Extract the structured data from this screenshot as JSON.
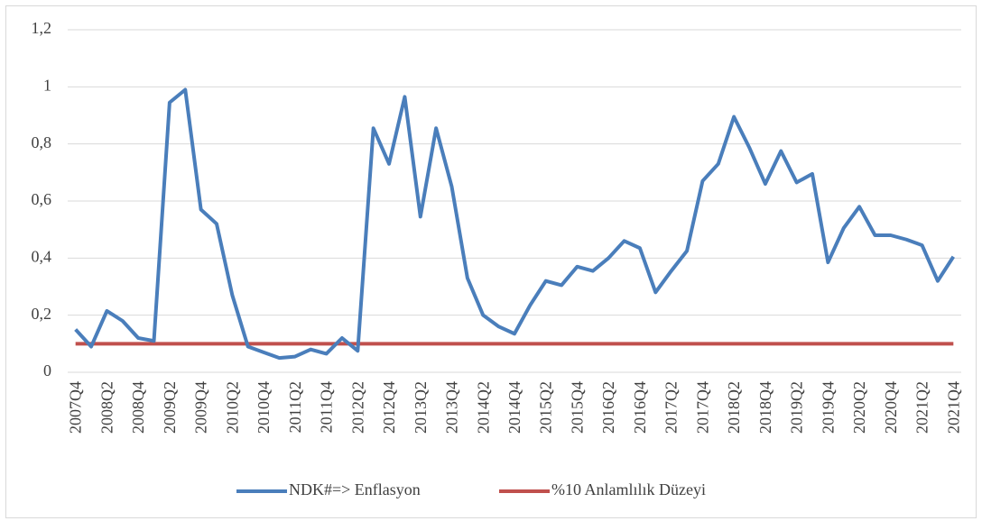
{
  "chart_data": {
    "type": "line",
    "categories": [
      "2007Q4",
      null,
      "2008Q2",
      null,
      "2008Q4",
      null,
      "2009Q2",
      null,
      "2009Q4",
      null,
      "2010Q2",
      null,
      "2010Q4",
      null,
      "2011Q2",
      null,
      "2011Q4",
      null,
      "2012Q2",
      null,
      "2012Q4",
      null,
      "2013Q2",
      null,
      "2013Q4",
      null,
      "2014Q2",
      null,
      "2014Q4",
      null,
      "2015Q2",
      null,
      "2015Q4",
      null,
      "2016Q2",
      null,
      "2016Q4",
      null,
      "2017Q2",
      null,
      "2017Q4",
      null,
      "2018Q2",
      null,
      "2018Q4",
      null,
      "2019Q2",
      null,
      "2019Q4",
      null,
      "2020Q2",
      null,
      "2020Q4",
      null,
      "2021Q2",
      null,
      "2021Q4"
    ],
    "series": [
      {
        "name": "NDK#=> Enflasyon",
        "color": "#4a7ebb",
        "values": [
          0.15,
          0.09,
          0.215,
          0.18,
          0.12,
          0.11,
          0.945,
          0.99,
          0.57,
          0.52,
          0.27,
          0.09,
          0.07,
          0.05,
          0.055,
          0.08,
          0.065,
          0.12,
          0.075,
          0.855,
          0.73,
          0.965,
          0.545,
          0.855,
          0.65,
          0.33,
          0.2,
          0.16,
          0.135,
          0.235,
          0.32,
          0.305,
          0.37,
          0.355,
          0.4,
          0.46,
          0.435,
          0.28,
          0.355,
          0.425,
          0.67,
          0.73,
          0.895,
          0.785,
          0.66,
          0.775,
          0.665,
          0.695,
          0.385,
          0.505,
          0.58,
          0.48,
          0.48,
          0.465,
          0.445,
          0.32,
          0.405
        ]
      },
      {
        "name": "%10 Anlamlılık Düzeyi",
        "color": "#c0504d",
        "values": [
          0.1,
          0.1,
          0.1,
          0.1,
          0.1,
          0.1,
          0.1,
          0.1,
          0.1,
          0.1,
          0.1,
          0.1,
          0.1,
          0.1,
          0.1,
          0.1,
          0.1,
          0.1,
          0.1,
          0.1,
          0.1,
          0.1,
          0.1,
          0.1,
          0.1,
          0.1,
          0.1,
          0.1,
          0.1,
          0.1,
          0.1,
          0.1,
          0.1,
          0.1,
          0.1,
          0.1,
          0.1,
          0.1,
          0.1,
          0.1,
          0.1,
          0.1,
          0.1,
          0.1,
          0.1,
          0.1,
          0.1,
          0.1,
          0.1,
          0.1,
          0.1,
          0.1,
          0.1,
          0.1,
          0.1,
          0.1,
          0.1
        ]
      }
    ],
    "ylim": [
      0,
      1.2
    ],
    "yticks": [
      0,
      {
        "value": 0.2,
        "label": "0,2"
      },
      {
        "value": 0.4,
        "label": "0,4"
      },
      {
        "value": 0.6,
        "label": "0,6"
      },
      {
        "value": 0.8,
        "label": "0,8"
      },
      1,
      {
        "value": 1.2,
        "label": "1,2"
      }
    ],
    "grid": true,
    "legend": "bottom"
  }
}
